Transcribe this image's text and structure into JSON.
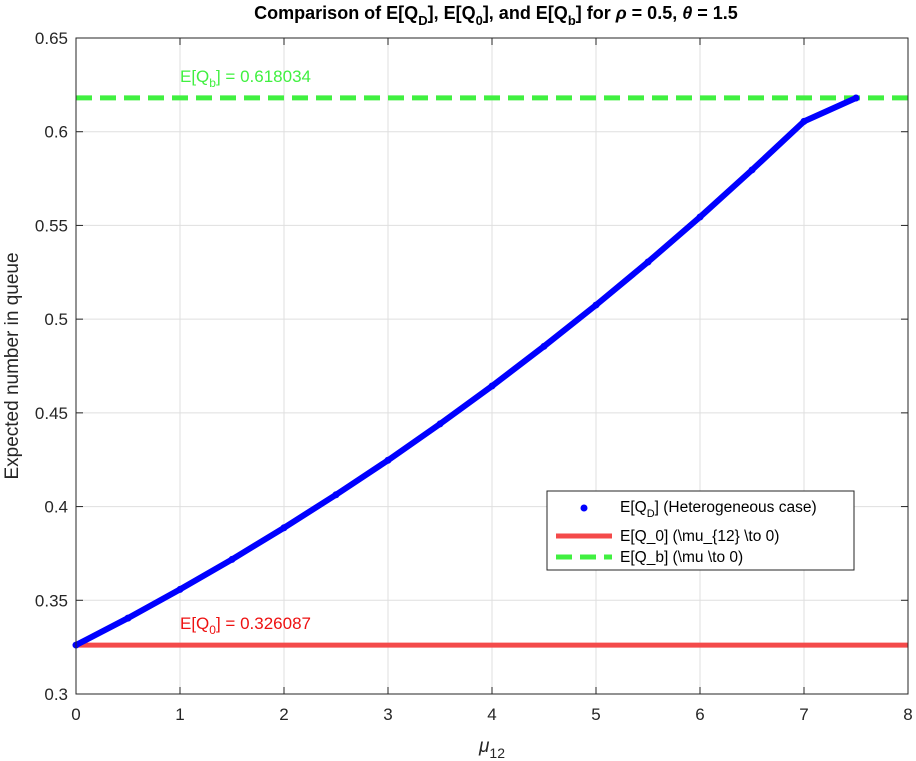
{
  "chart_data": {
    "type": "line",
    "title": {
      "prefix": "Comparison of E[Q",
      "sub_d": "D",
      "mid1": "], E[Q",
      "sub_0": "0",
      "mid2": "], and E[Q",
      "sub_b": "b",
      "mid3": "] for ",
      "rho_symbol": "ρ",
      "rho_text": " = 0.5, ",
      "theta_symbol": "θ",
      "theta_text": " = 1.5"
    },
    "xlabel": {
      "main": "μ",
      "sub": "12"
    },
    "ylabel": "Expected number in queue",
    "xlim": [
      0,
      8
    ],
    "ylim": [
      0.3,
      0.65
    ],
    "xticks": [
      "0",
      "1",
      "2",
      "3",
      "4",
      "5",
      "6",
      "7",
      "8"
    ],
    "yticks": [
      "0.3",
      "0.35",
      "0.4",
      "0.45",
      "0.5",
      "0.55",
      "0.6",
      "0.65"
    ],
    "grid": true,
    "legend_position": "right-middle",
    "series": [
      {
        "name_main": "E[Q",
        "name_sub": "D",
        "name_rest": "] (Heterogeneous case)",
        "style": "dots",
        "color": "#0000ff",
        "x": [
          0,
          0.5,
          1,
          1.5,
          2,
          2.5,
          3,
          3.5,
          4,
          4.5,
          5,
          5.5,
          6,
          6.5,
          7,
          7.5
        ],
        "y": [
          0.3261,
          0.3405,
          0.3558,
          0.3718,
          0.3887,
          0.4063,
          0.4247,
          0.4441,
          0.4643,
          0.4855,
          0.5075,
          0.5305,
          0.5545,
          0.5796,
          0.6055,
          0.618
        ]
      },
      {
        "name": "E[Q_0] (\\mu_{12} \\to 0)",
        "style": "solid",
        "color": "#f44a4a",
        "y": 0.326087
      },
      {
        "name": "E[Q_b] (\\mu \\to 0)",
        "style": "dashed",
        "color": "#40f040",
        "y": 0.618034
      }
    ],
    "annotations": [
      {
        "main": "E[Q",
        "sub": "b",
        "rest": "] = 0.618034",
        "x": 1.0,
        "y": 0.618034,
        "color": "#40f040"
      },
      {
        "main": "E[Q",
        "sub": "0",
        "rest": "] = 0.326087",
        "x": 1.0,
        "y": 0.326087,
        "color": "#ee1111"
      }
    ]
  }
}
